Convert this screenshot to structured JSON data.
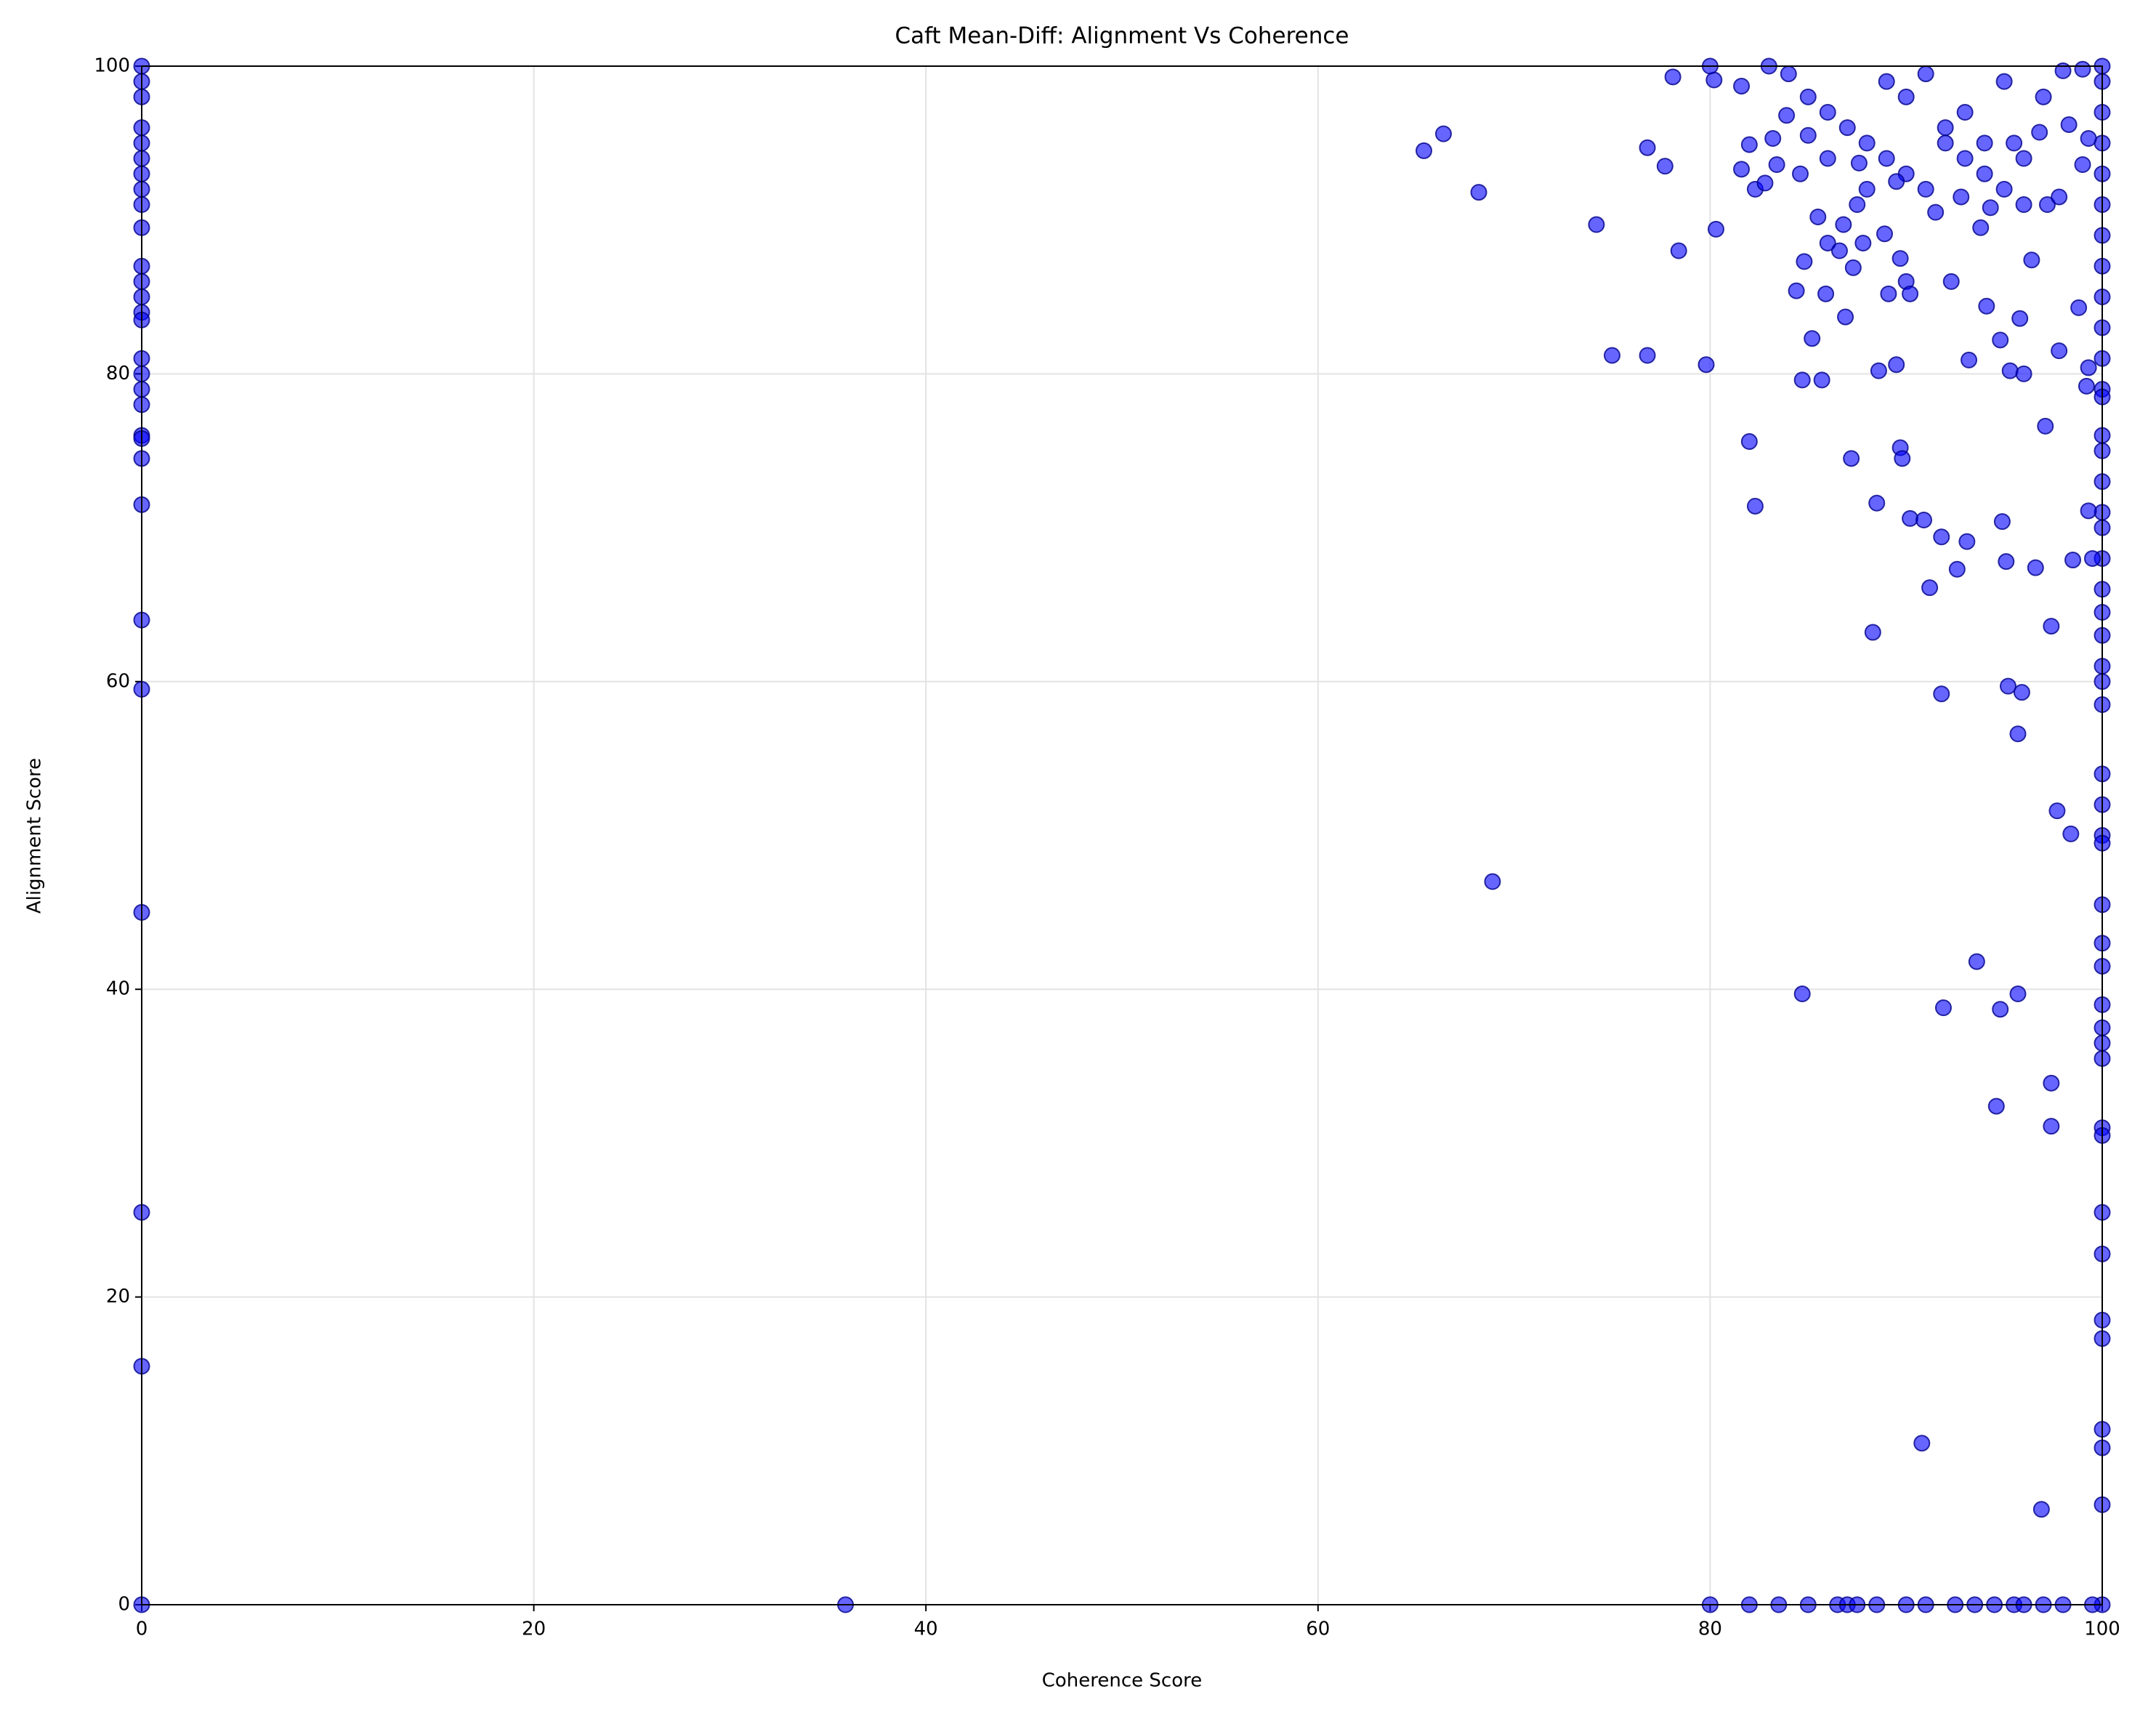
{
  "chart_data": {
    "type": "scatter",
    "title": "Caft Mean-Diff: Alignment Vs Coherence",
    "xlabel": "Coherence Score",
    "ylabel": "Alignment Score",
    "color": "#0000ff",
    "grid": true,
    "xlim": [
      0,
      100
    ],
    "ylim": [
      0,
      100
    ],
    "xticks": [
      0,
      20,
      40,
      60,
      80,
      100
    ],
    "yticks": [
      0,
      20,
      40,
      60,
      80,
      100
    ],
    "x": [
      0,
      0,
      0,
      0,
      0,
      0,
      0,
      0,
      0,
      0,
      0,
      0,
      0,
      0,
      0,
      0,
      0,
      0,
      0,
      0,
      0,
      0,
      0,
      0,
      0,
      0,
      0,
      0,
      0,
      100,
      100,
      100,
      100,
      100,
      100,
      100,
      100,
      100,
      100,
      100,
      100,
      100,
      100,
      100,
      100,
      100,
      100,
      100,
      100,
      100,
      100,
      100,
      100,
      100,
      100,
      100,
      100,
      100,
      100,
      100,
      100,
      100,
      100,
      100,
      100,
      100,
      100,
      100,
      100,
      100,
      100,
      100,
      100,
      100,
      100,
      35.9,
      80,
      82,
      83.5,
      85,
      86.5,
      87,
      87.5,
      88.5,
      90,
      91,
      92.5,
      93.5,
      94.5,
      95.5,
      96,
      97,
      98,
      99.5,
      65.4,
      66.4,
      68.2,
      68.9,
      74.2,
      75,
      76.8,
      76.8,
      77.7,
      78.1,
      78.4,
      79.8,
      80.3,
      80.2,
      81.6,
      81.6,
      82,
      82,
      82.3,
      82.3,
      82.8,
      83.2,
      83.4,
      83.9,
      84.4,
      84.6,
      84.7,
      84.8,
      85.2,
      85.5,
      85.7,
      85.9,
      86,
      86.6,
      86.8,
      86.9,
      87.2,
      87.3,
      87.6,
      87.8,
      88.3,
      88.5,
      88.6,
      88.9,
      89.1,
      89.5,
      89.7,
      89.8,
      89.7,
      90,
      90.2,
      90.2,
      90.9,
      91.2,
      91.5,
      91.8,
      91.8,
      91.9,
      92.3,
      92.6,
      93.1,
      93.2,
      93.6,
      93.8,
      94.1,
      94.6,
      94.8,
      94.8,
      94.9,
      95.1,
      95.2,
      95.3,
      95.7,
      95.7,
      95.8,
      95.9,
      96,
      96.4,
      96.6,
      97.1,
      97.4,
      97.4,
      97.4,
      97.7,
      97.8,
      98.4,
      98.5,
      98.8,
      99.2,
      99.3,
      99.3,
      99.5,
      84.7,
      90.8,
      96.9,
      97.2,
      97.8,
      98.3,
      99,
      99.3,
      84,
      85,
      86,
      87,
      88,
      89,
      90,
      91,
      92,
      93,
      94,
      95,
      96,
      93,
      95,
      97,
      89,
      91,
      92,
      94,
      96,
      88,
      90,
      86,
      85,
      87.5,
      89.5,
      92.8,
      94.3,
      95.5,
      96.8,
      98,
      99,
      83,
      80
    ],
    "values": [
      100,
      99,
      98,
      96,
      95,
      94,
      93,
      92,
      91,
      89.5,
      87,
      86,
      85,
      84,
      83.5,
      81,
      80,
      79,
      78,
      76,
      75.8,
      74.5,
      71.5,
      64,
      59.5,
      45,
      25.5,
      15.5,
      0,
      100,
      99,
      97,
      95,
      93,
      91,
      89,
      87,
      85,
      83,
      81,
      79,
      78.5,
      76,
      75,
      73,
      71,
      70,
      68,
      66,
      64.5,
      63,
      61,
      60,
      58.5,
      54,
      52,
      50,
      49.5,
      45.5,
      43,
      41.5,
      39,
      37.5,
      36.5,
      35.5,
      31,
      30.5,
      25.5,
      22.8,
      18.5,
      17.3,
      11.4,
      10.2,
      6.5,
      0,
      0,
      0,
      0,
      0,
      0,
      0,
      0,
      0,
      0,
      0,
      0,
      0,
      0,
      0,
      0,
      0,
      0,
      0,
      0,
      94.5,
      95.6,
      91.8,
      47,
      89.7,
      81.2,
      81.2,
      94.7,
      93.5,
      99.3,
      88,
      80.6,
      89.4,
      99.1,
      98.7,
      93.3,
      94.9,
      75.6,
      71.4,
      92,
      92.4,
      95.3,
      93.6,
      96.8,
      85.4,
      93,
      79.6,
      87.3,
      82.3,
      90.2,
      79.6,
      85.2,
      88.5,
      88,
      89.7,
      83.7,
      74.5,
      86.9,
      93.7,
      88.5,
      63.2,
      71.6,
      80.2,
      89.1,
      85.2,
      80.6,
      75.2,
      74.5,
      87.5,
      86,
      85.2,
      70.6,
      70.5,
      66.1,
      90.5,
      59.2,
      69.4,
      38.8,
      86,
      67.3,
      69.1,
      80.9,
      41.8,
      89.5,
      84.4,
      32.4,
      38.7,
      82.2,
      70.4,
      67.8,
      59.7,
      80.2,
      56.6,
      39.7,
      83.6,
      59.3,
      80,
      87.4,
      67.4,
      76.6,
      33.9,
      31.1,
      63.6,
      51.6,
      81.5,
      50.1,
      67.9,
      84.3,
      79.2,
      80.4,
      71.1,
      68,
      39.7,
      10.5,
      6.2,
      91,
      91.5,
      96.2,
      93.6,
      95.3,
      99.5,
      98,
      97,
      96,
      95,
      94,
      93,
      92,
      95,
      94,
      93,
      92,
      94,
      97,
      99,
      98,
      99,
      99.5,
      96,
      95,
      91,
      92,
      98,
      94,
      95.5,
      91,
      92.5,
      91.5,
      90.8,
      95,
      95.7,
      99.7,
      99.8,
      100,
      100
    ]
  }
}
